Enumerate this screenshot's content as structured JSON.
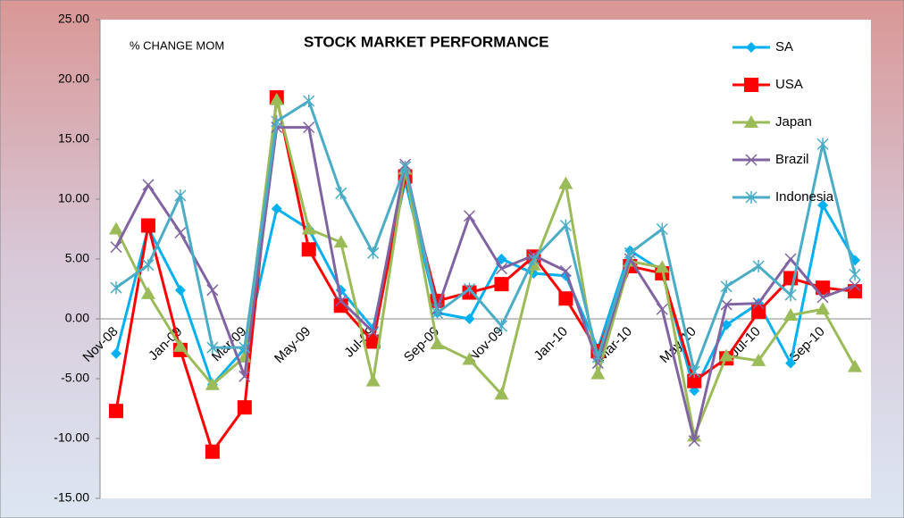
{
  "chart_data": {
    "type": "line",
    "title": "STOCK MARKET PERFORMANCE",
    "subtitle": "% CHANGE MOM",
    "categories": [
      "Nov-08",
      null,
      "Jan-09",
      null,
      "Mar-09",
      null,
      "May-09",
      null,
      "Jul-09",
      null,
      "Sep-09",
      null,
      "Nov-09",
      null,
      "Jan-10",
      null,
      "Mar-10",
      null,
      "May-10",
      null,
      "Jul-10",
      null,
      "Sep-10",
      null
    ],
    "series": [
      {
        "name": "SA",
        "color": "#00b0f0",
        "marker": "diamond",
        "values": [
          -2.9,
          7.6,
          2.4,
          -5.5,
          -2.5,
          9.2,
          7.5,
          2.4,
          -0.8,
          11.5,
          0.5,
          0,
          5,
          3.8,
          3.6,
          -2.5,
          5.7,
          4,
          -6,
          -0.5,
          1.3,
          -3.7,
          9.5,
          4.9
        ]
      },
      {
        "name": "USA",
        "color": "#ff0000",
        "marker": "square",
        "values": [
          -7.7,
          7.8,
          -2.6,
          -11.1,
          -7.4,
          18.5,
          5.8,
          1.1,
          -1.9,
          11.9,
          1.5,
          2.2,
          2.9,
          5.2,
          1.7,
          -2.7,
          4.4,
          3.8,
          -5.2,
          -3.3,
          0.6,
          3.4,
          2.6,
          2.3
        ]
      },
      {
        "name": "Japan",
        "color": "#9bbb59",
        "marker": "triangle",
        "values": [
          7.5,
          2.1,
          -2.3,
          -5.5,
          -3.2,
          18.3,
          7.5,
          6.4,
          -5.2,
          12.5,
          -2.1,
          -3.4,
          -6.3,
          4.5,
          11.3,
          -4.6,
          4.8,
          4.3,
          -9.8,
          -3.1,
          -3.5,
          0.3,
          0.8,
          -4.0
        ]
      },
      {
        "name": "Brazil",
        "color": "#8064a2",
        "marker": "x",
        "values": [
          6.0,
          11.2,
          7.2,
          2.4,
          -4.8,
          16.0,
          16.0,
          1.5,
          -1.1,
          12.9,
          0.8,
          8.6,
          4.2,
          5.3,
          4.0,
          -3.7,
          5.0,
          0.8,
          -10.2,
          1.2,
          1.3,
          5.0,
          1.8,
          2.8
        ]
      },
      {
        "name": "Indonesia",
        "color": "#4bacc6",
        "marker": "star",
        "values": [
          2.6,
          4.5,
          10.3,
          -2.4,
          -2.4,
          16.5,
          18.2,
          10.5,
          5.5,
          12.7,
          0.5,
          2.5,
          -0.6,
          5.0,
          7.8,
          -3.2,
          5.5,
          7.5,
          -4.4,
          2.7,
          4.4,
          2.0,
          14.6,
          3.7
        ]
      }
    ],
    "ylim": [
      -15,
      25
    ],
    "yticks": [
      {
        "value": -15,
        "label": "-15.00"
      },
      {
        "value": -10,
        "label": "-10.00"
      },
      {
        "value": -5,
        "label": "-5.00"
      },
      {
        "value": 0,
        "label": "0.00"
      },
      {
        "value": 5,
        "label": "5.00"
      },
      {
        "value": 10,
        "label": "10.00"
      },
      {
        "value": 15,
        "label": "15.00"
      },
      {
        "value": 20,
        "label": "20.00"
      },
      {
        "value": 25,
        "label": "25.00"
      }
    ],
    "legend": "top-right"
  }
}
